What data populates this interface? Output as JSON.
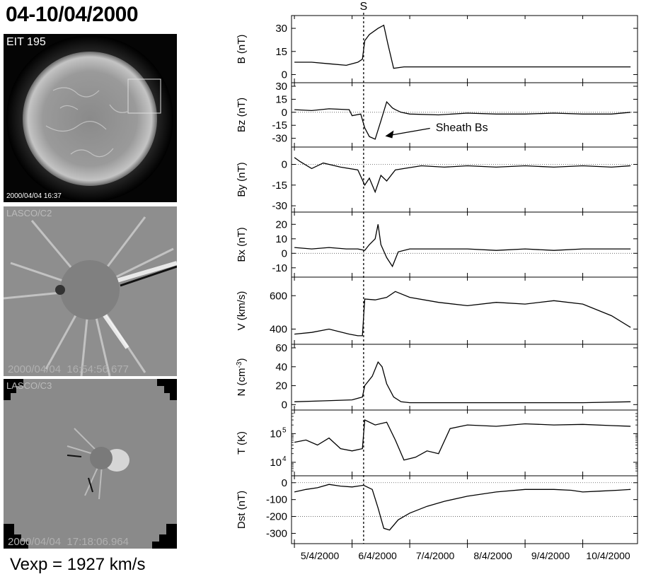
{
  "page_title": "04-10/04/2000",
  "vexp_text": "Vexp = 1927 km/s",
  "image_panels": [
    {
      "instrument": "EIT 195",
      "timestamp": "2000/04/04 16:37"
    },
    {
      "instrument": "LASCO/C2",
      "timestamp": "2000/04/04  16:54:56.677"
    },
    {
      "instrument": "LASCO/C3",
      "timestamp": "2000/04/04  17:18:06.964"
    }
  ],
  "chart_data": {
    "type": "line",
    "shock_label": "S",
    "shock_x": 6.2,
    "x_range": [
      4.95,
      10.95
    ],
    "x_ticks": [
      5,
      6,
      7,
      8,
      9,
      10
    ],
    "x_tick_labels": [
      "5/4/2000",
      "6/4/2000",
      "7/4/2000",
      "8/4/2000",
      "9/4/2000",
      "10/4/2000"
    ],
    "panels": [
      {
        "ylabel": "B (nT)",
        "scale": "linear",
        "ylim": [
          -3,
          36
        ],
        "ticks": [
          0,
          15,
          30
        ],
        "tick_labels": [
          "0",
          "15",
          "30"
        ],
        "zero_line": false,
        "x": [
          5.0,
          5.3,
          5.6,
          5.9,
          6.1,
          6.18,
          6.22,
          6.3,
          6.45,
          6.55,
          6.62,
          6.72,
          6.9,
          7.5,
          8.0,
          8.5,
          9.0,
          9.5,
          10.0,
          10.5,
          10.83
        ],
        "y": [
          8,
          8,
          7,
          6,
          8,
          10,
          22,
          26,
          30,
          32,
          20,
          4,
          5,
          5,
          5,
          5,
          5,
          5,
          5,
          5,
          5
        ]
      },
      {
        "ylabel": "Bz (nT)",
        "scale": "linear",
        "ylim": [
          -36,
          30
        ],
        "ticks": [
          -30,
          -15,
          0,
          15,
          30
        ],
        "tick_labels": [
          "-30",
          "-15",
          "0",
          "15",
          "30"
        ],
        "zero_line": true,
        "annotation": "Sheath Bs",
        "x": [
          5.0,
          5.3,
          5.6,
          5.95,
          6.0,
          6.15,
          6.22,
          6.3,
          6.4,
          6.5,
          6.6,
          6.7,
          6.75,
          6.85,
          7.0,
          7.5,
          8.0,
          8.5,
          9.0,
          9.5,
          10.0,
          10.5,
          10.83
        ],
        "y": [
          3,
          2,
          4,
          3,
          -4,
          -2,
          -18,
          -28,
          -31,
          -10,
          12,
          5,
          3,
          0,
          -2,
          -3,
          -1,
          -2,
          -2,
          -1,
          -2,
          -2,
          0
        ]
      },
      {
        "ylabel": "By (nT)",
        "scale": "linear",
        "ylim": [
          -32,
          10
        ],
        "ticks": [
          -30,
          -15,
          0
        ],
        "tick_labels": [
          "-30",
          "-15",
          "0"
        ],
        "zero_line": true,
        "x": [
          5.0,
          5.1,
          5.3,
          5.5,
          5.8,
          6.1,
          6.22,
          6.3,
          6.4,
          6.5,
          6.6,
          6.75,
          6.9,
          7.2,
          7.6,
          8.0,
          8.5,
          9.0,
          9.5,
          10.0,
          10.5,
          10.83
        ],
        "y": [
          5,
          2,
          -3,
          1,
          -2,
          -4,
          -15,
          -10,
          -20,
          -8,
          -12,
          -4,
          -3,
          -1,
          -2,
          -1,
          -2,
          -1,
          -2,
          -1,
          -2,
          -1
        ]
      },
      {
        "ylabel": "Bx (nT)",
        "scale": "linear",
        "ylim": [
          -14,
          26
        ],
        "ticks": [
          -10,
          0,
          10,
          20
        ],
        "tick_labels": [
          "-10",
          "0",
          "10",
          "20"
        ],
        "zero_line": true,
        "x": [
          5.0,
          5.3,
          5.6,
          5.9,
          6.1,
          6.22,
          6.3,
          6.4,
          6.45,
          6.5,
          6.6,
          6.7,
          6.8,
          7.0,
          7.5,
          8.0,
          8.5,
          9.0,
          9.5,
          10.0,
          10.5,
          10.83
        ],
        "y": [
          4,
          3,
          4,
          3,
          3,
          2,
          6,
          10,
          20,
          6,
          -3,
          -9,
          1,
          3,
          3,
          3,
          2,
          3,
          2,
          3,
          3,
          3
        ]
      },
      {
        "ylabel": "V (km/s)",
        "scale": "linear",
        "ylim": [
          330,
          690
        ],
        "ticks": [
          400,
          600
        ],
        "tick_labels": [
          "400",
          "600"
        ],
        "zero_line": false,
        "x": [
          5.0,
          5.3,
          5.6,
          5.95,
          6.1,
          6.18,
          6.22,
          6.4,
          6.6,
          6.75,
          7.0,
          7.5,
          8.0,
          8.5,
          9.0,
          9.5,
          10.0,
          10.5,
          10.83
        ],
        "y": [
          370,
          380,
          400,
          370,
          360,
          360,
          580,
          575,
          590,
          625,
          590,
          560,
          540,
          560,
          550,
          570,
          550,
          480,
          410
        ]
      },
      {
        "ylabel": "N (cm-3)",
        "scale": "linear",
        "ylim": [
          -2,
          60
        ],
        "ticks": [
          0,
          20,
          40,
          60
        ],
        "tick_labels": [
          "0",
          "20",
          "40",
          "60"
        ],
        "zero_line": false,
        "x": [
          5.0,
          5.5,
          6.0,
          6.18,
          6.22,
          6.35,
          6.45,
          6.52,
          6.6,
          6.72,
          6.85,
          7.0,
          7.5,
          8.0,
          9.0,
          10.0,
          10.83
        ],
        "y": [
          3,
          4,
          5,
          8,
          20,
          30,
          45,
          40,
          22,
          8,
          3,
          2,
          2,
          2,
          2,
          2,
          3
        ]
      },
      {
        "ylabel": "T (K)",
        "scale": "log",
        "ylim": [
          4500,
          500000
        ],
        "ticks": [
          10000,
          100000
        ],
        "tick_labels": [
          "10",
          "10"
        ],
        "tick_exponents": [
          "4",
          "5"
        ],
        "zero_line": false,
        "x": [
          5.0,
          5.2,
          5.4,
          5.6,
          5.8,
          6.0,
          6.18,
          6.22,
          6.4,
          6.6,
          6.75,
          6.9,
          7.1,
          7.3,
          7.5,
          7.7,
          8.0,
          8.5,
          9.0,
          9.5,
          10.0,
          10.5,
          10.83
        ],
        "y": [
          50000,
          60000,
          40000,
          70000,
          30000,
          25000,
          30000,
          300000,
          200000,
          250000,
          60000,
          12000,
          15000,
          25000,
          20000,
          150000,
          200000,
          180000,
          220000,
          200000,
          210000,
          190000,
          180000
        ]
      },
      {
        "ylabel": "Dst (nT)",
        "scale": "linear",
        "ylim": [
          -340,
          20
        ],
        "ticks": [
          -300,
          -200,
          -100,
          0
        ],
        "tick_labels": [
          "-300",
          "-200",
          "-100",
          "0"
        ],
        "zero_line": true,
        "ref_line": -200,
        "x": [
          5.0,
          5.2,
          5.4,
          5.6,
          5.8,
          6.0,
          6.2,
          6.35,
          6.45,
          6.55,
          6.65,
          6.8,
          7.0,
          7.3,
          7.6,
          8.0,
          8.5,
          9.0,
          9.5,
          9.8,
          10.0,
          10.3,
          10.6,
          10.83
        ],
        "y": [
          -55,
          -40,
          -30,
          -10,
          -20,
          -25,
          -15,
          -40,
          -150,
          -270,
          -280,
          -220,
          -180,
          -140,
          -110,
          -80,
          -55,
          -40,
          -40,
          -45,
          -55,
          -50,
          -45,
          -40
        ]
      }
    ]
  }
}
